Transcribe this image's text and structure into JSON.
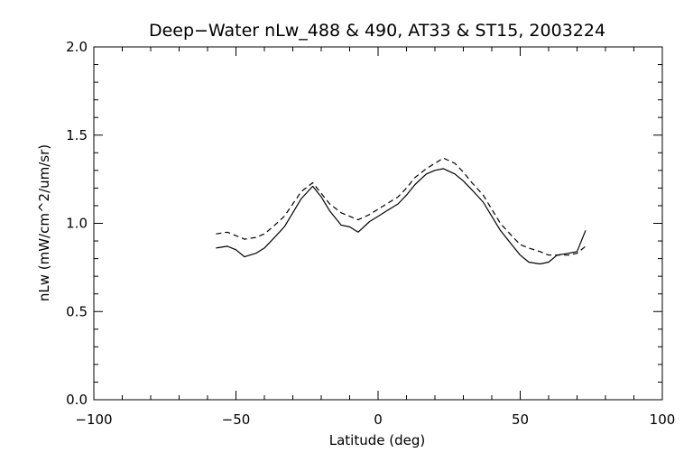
{
  "chart_data": {
    "type": "line",
    "title": "Deep−Water nLw_488 & 490, AT33 & ST15, 2003224",
    "xlabel": "Latitude (deg)",
    "ylabel": "nLw (mW/cm^2/um/sr)",
    "xlim": [
      -100,
      100
    ],
    "ylim": [
      0.0,
      2.0
    ],
    "x_ticks": [
      -100,
      -50,
      0,
      50,
      100
    ],
    "x_tick_labels": [
      "−100",
      "−50",
      "0",
      "50",
      "100"
    ],
    "y_ticks": [
      0.0,
      0.5,
      1.0,
      1.5,
      2.0
    ],
    "y_tick_labels": [
      "0.0",
      "0.5",
      "1.0",
      "1.5",
      "2.0"
    ],
    "x_minor_step": 10,
    "y_minor_step": 0.1,
    "grid": false,
    "legend": "none",
    "series": [
      {
        "style": "solid",
        "color": "#000000",
        "x": [
          -57,
          -53,
          -50,
          -47,
          -43,
          -40,
          -37,
          -33,
          -30,
          -27,
          -23,
          -20,
          -17,
          -13,
          -10,
          -7,
          -3,
          0,
          3,
          7,
          10,
          13,
          17,
          20,
          23,
          27,
          30,
          33,
          37,
          40,
          43,
          47,
          50,
          53,
          57,
          60,
          63,
          67,
          70,
          73
        ],
        "y": [
          0.86,
          0.87,
          0.85,
          0.81,
          0.83,
          0.86,
          0.91,
          0.98,
          1.06,
          1.14,
          1.21,
          1.15,
          1.07,
          0.99,
          0.98,
          0.95,
          1.01,
          1.04,
          1.07,
          1.11,
          1.16,
          1.22,
          1.28,
          1.3,
          1.31,
          1.28,
          1.24,
          1.19,
          1.12,
          1.04,
          0.96,
          0.88,
          0.82,
          0.78,
          0.77,
          0.78,
          0.82,
          0.83,
          0.84,
          0.96
        ]
      },
      {
        "style": "dashed",
        "color": "#000000",
        "x": [
          -57,
          -53,
          -50,
          -47,
          -43,
          -40,
          -37,
          -33,
          -30,
          -27,
          -23,
          -20,
          -17,
          -13,
          -10,
          -7,
          -3,
          0,
          3,
          7,
          10,
          13,
          17,
          20,
          23,
          27,
          30,
          33,
          37,
          40,
          43,
          47,
          50,
          53,
          57,
          60,
          63,
          67,
          70,
          73
        ],
        "y": [
          0.94,
          0.95,
          0.93,
          0.91,
          0.92,
          0.94,
          0.98,
          1.04,
          1.11,
          1.18,
          1.23,
          1.17,
          1.11,
          1.06,
          1.04,
          1.02,
          1.05,
          1.08,
          1.11,
          1.15,
          1.2,
          1.26,
          1.31,
          1.34,
          1.37,
          1.34,
          1.29,
          1.23,
          1.16,
          1.08,
          1.0,
          0.93,
          0.88,
          0.86,
          0.84,
          0.82,
          0.82,
          0.82,
          0.83,
          0.87
        ]
      }
    ]
  }
}
